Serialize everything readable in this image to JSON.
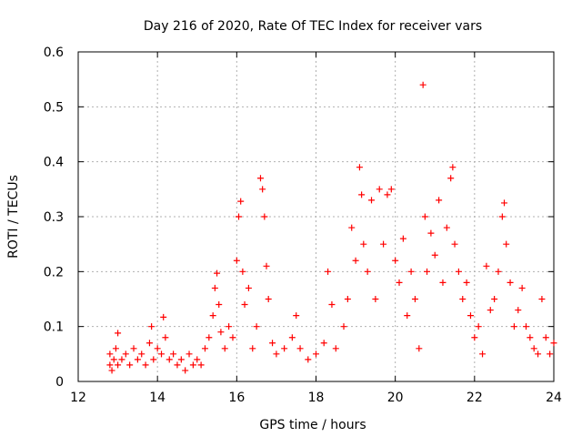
{
  "chart_data": {
    "type": "scatter",
    "title": "Day 216 of 2020, Rate Of TEC Index for receiver vars",
    "xlabel": "GPS time / hours",
    "ylabel": "ROTI / TECUs",
    "xlim": [
      12,
      24
    ],
    "ylim": [
      0,
      0.6
    ],
    "xticks": [
      12,
      14,
      16,
      18,
      20,
      22,
      24
    ],
    "yticks": [
      0,
      0.1,
      0.2,
      0.3,
      0.4,
      0.5,
      0.6
    ],
    "xtick_labels": [
      "12",
      "14",
      "16",
      "18",
      "20",
      "22",
      "24"
    ],
    "ytick_labels": [
      "0",
      "0.1",
      "0.2",
      "0.3",
      "0.4",
      "0.5",
      "0.6"
    ],
    "grid": true,
    "marker": "+",
    "color": "#ff0000",
    "series": [
      {
        "name": "ROTI",
        "points": [
          [
            12.8,
            0.03
          ],
          [
            12.8,
            0.05
          ],
          [
            12.85,
            0.02
          ],
          [
            12.9,
            0.04
          ],
          [
            12.95,
            0.06
          ],
          [
            13.0,
            0.088
          ],
          [
            13.0,
            0.03
          ],
          [
            13.1,
            0.04
          ],
          [
            13.2,
            0.05
          ],
          [
            13.3,
            0.03
          ],
          [
            13.4,
            0.06
          ],
          [
            13.5,
            0.04
          ],
          [
            13.6,
            0.05
          ],
          [
            13.7,
            0.03
          ],
          [
            13.8,
            0.07
          ],
          [
            13.85,
            0.1
          ],
          [
            13.9,
            0.04
          ],
          [
            14.0,
            0.06
          ],
          [
            14.1,
            0.05
          ],
          [
            14.15,
            0.117
          ],
          [
            14.2,
            0.08
          ],
          [
            14.3,
            0.04
          ],
          [
            14.4,
            0.05
          ],
          [
            14.5,
            0.03
          ],
          [
            14.6,
            0.04
          ],
          [
            14.7,
            0.02
          ],
          [
            14.8,
            0.05
          ],
          [
            14.9,
            0.03
          ],
          [
            15.0,
            0.04
          ],
          [
            15.1,
            0.03
          ],
          [
            15.2,
            0.06
          ],
          [
            15.3,
            0.08
          ],
          [
            15.4,
            0.12
          ],
          [
            15.45,
            0.17
          ],
          [
            15.5,
            0.197
          ],
          [
            15.55,
            0.14
          ],
          [
            15.6,
            0.09
          ],
          [
            15.7,
            0.06
          ],
          [
            15.8,
            0.1
          ],
          [
            15.9,
            0.08
          ],
          [
            16.0,
            0.22
          ],
          [
            16.05,
            0.3
          ],
          [
            16.1,
            0.328
          ],
          [
            16.15,
            0.2
          ],
          [
            16.2,
            0.14
          ],
          [
            16.3,
            0.17
          ],
          [
            16.4,
            0.06
          ],
          [
            16.5,
            0.1
          ],
          [
            16.6,
            0.37
          ],
          [
            16.65,
            0.35
          ],
          [
            16.7,
            0.3
          ],
          [
            16.75,
            0.21
          ],
          [
            16.8,
            0.15
          ],
          [
            16.9,
            0.07
          ],
          [
            17.0,
            0.05
          ],
          [
            17.2,
            0.06
          ],
          [
            17.4,
            0.08
          ],
          [
            17.5,
            0.12
          ],
          [
            17.6,
            0.06
          ],
          [
            17.8,
            0.04
          ],
          [
            18.0,
            0.05
          ],
          [
            18.2,
            0.07
          ],
          [
            18.3,
            0.2
          ],
          [
            18.4,
            0.14
          ],
          [
            18.5,
            0.06
          ],
          [
            18.7,
            0.1
          ],
          [
            18.8,
            0.15
          ],
          [
            18.9,
            0.28
          ],
          [
            19.0,
            0.22
          ],
          [
            19.1,
            0.39
          ],
          [
            19.15,
            0.34
          ],
          [
            19.2,
            0.25
          ],
          [
            19.3,
            0.2
          ],
          [
            19.4,
            0.33
          ],
          [
            19.5,
            0.15
          ],
          [
            19.6,
            0.35
          ],
          [
            19.7,
            0.25
          ],
          [
            19.8,
            0.34
          ],
          [
            19.9,
            0.35
          ],
          [
            20.0,
            0.22
          ],
          [
            20.1,
            0.18
          ],
          [
            20.2,
            0.26
          ],
          [
            20.3,
            0.12
          ],
          [
            20.4,
            0.2
          ],
          [
            20.5,
            0.15
          ],
          [
            20.6,
            0.06
          ],
          [
            20.7,
            0.54
          ],
          [
            20.75,
            0.3
          ],
          [
            20.8,
            0.2
          ],
          [
            20.9,
            0.27
          ],
          [
            21.0,
            0.23
          ],
          [
            21.1,
            0.33
          ],
          [
            21.2,
            0.18
          ],
          [
            21.3,
            0.28
          ],
          [
            21.4,
            0.37
          ],
          [
            21.45,
            0.39
          ],
          [
            21.5,
            0.25
          ],
          [
            21.6,
            0.2
          ],
          [
            21.7,
            0.15
          ],
          [
            21.8,
            0.18
          ],
          [
            21.9,
            0.12
          ],
          [
            22.0,
            0.08
          ],
          [
            22.1,
            0.1
          ],
          [
            22.2,
            0.05
          ],
          [
            22.3,
            0.21
          ],
          [
            22.4,
            0.13
          ],
          [
            22.5,
            0.15
          ],
          [
            22.6,
            0.2
          ],
          [
            22.7,
            0.3
          ],
          [
            22.75,
            0.325
          ],
          [
            22.8,
            0.25
          ],
          [
            22.9,
            0.18
          ],
          [
            23.0,
            0.1
          ],
          [
            23.1,
            0.13
          ],
          [
            23.2,
            0.17
          ],
          [
            23.3,
            0.1
          ],
          [
            23.4,
            0.08
          ],
          [
            23.5,
            0.06
          ],
          [
            23.6,
            0.05
          ],
          [
            23.7,
            0.15
          ],
          [
            23.8,
            0.08
          ],
          [
            23.9,
            0.05
          ],
          [
            24.0,
            0.07
          ]
        ]
      }
    ]
  }
}
